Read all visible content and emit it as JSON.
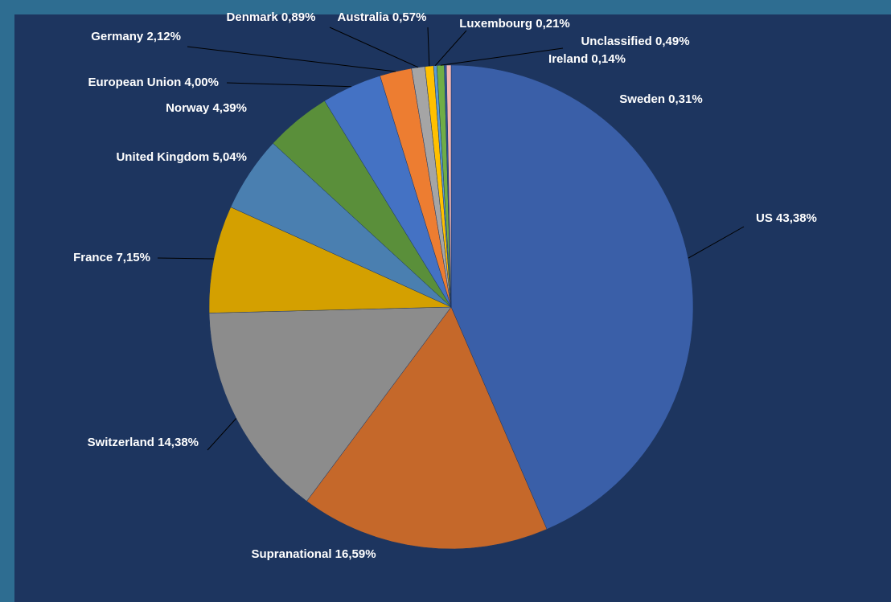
{
  "chart_data": {
    "type": "pie",
    "categories": [
      "US",
      "Supranational",
      "Switzerland",
      "France",
      "United Kingdom",
      "Norway",
      "European Union",
      "Germany",
      "Denmark",
      "Australia",
      "Luxembourg",
      "Unclassified",
      "Ireland",
      "Sweden"
    ],
    "values": [
      43.38,
      16.59,
      14.38,
      7.15,
      5.04,
      4.39,
      4.0,
      2.12,
      0.89,
      0.57,
      0.21,
      0.49,
      0.14,
      0.31
    ],
    "value_labels": [
      "43,38%",
      "16,59%",
      "14,38%",
      "7,15%",
      "5,04%",
      "4,39%",
      "4,00%",
      "2,12%",
      "0,89%",
      "0,57%",
      "0,21%",
      "0,49%",
      "0,14%",
      "0,31%"
    ],
    "colors": [
      "#3a5fa8",
      "#c5682a",
      "#8c8c8c",
      "#d4a000",
      "#4a7fb0",
      "#5a8f3a",
      "#4472c4",
      "#ed7d31",
      "#a5a5a5",
      "#ffc000",
      "#5b9bd5",
      "#70ad47",
      "#2f5597",
      "#f4b6b6"
    ]
  }
}
